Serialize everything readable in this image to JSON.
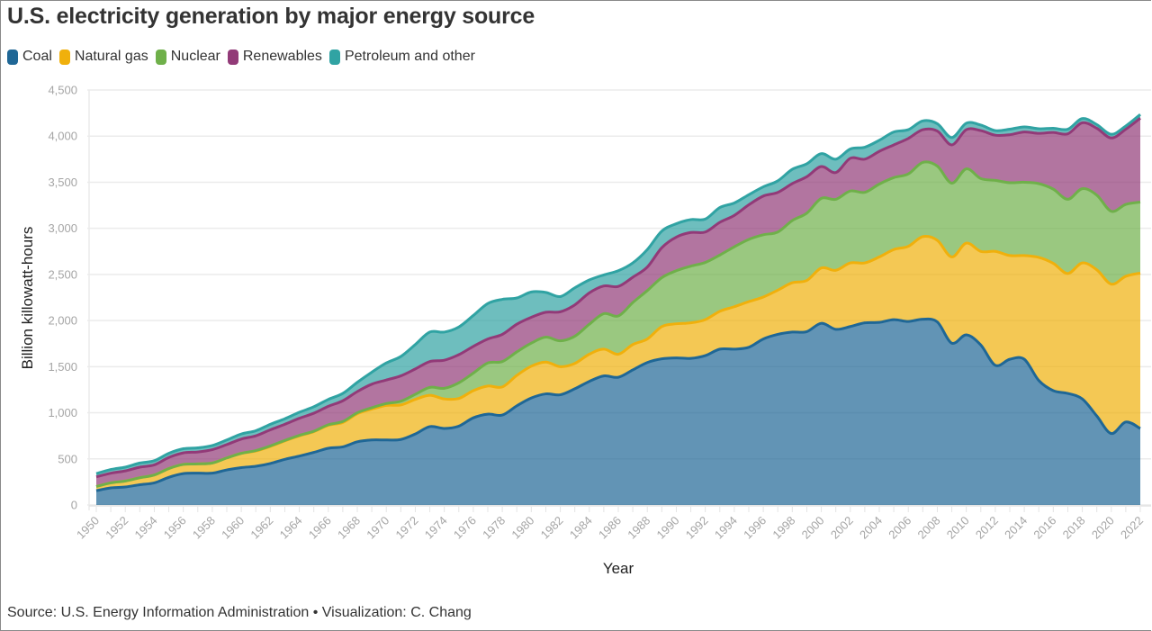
{
  "title": "U.S. electricity generation by major energy source",
  "footer": "Source: U.S. Energy Information Administration • Visualization: C. Chang",
  "legend": [
    {
      "label": "Coal",
      "color": "#1f6796"
    },
    {
      "label": "Natural gas",
      "color": "#f0b00c"
    },
    {
      "label": "Nuclear",
      "color": "#6fb04a"
    },
    {
      "label": "Renewables",
      "color": "#923a78"
    },
    {
      "label": "Petroleum and other",
      "color": "#30a3a3"
    }
  ],
  "chart_data": {
    "type": "area",
    "stacked": true,
    "title": "U.S. electricity generation by major energy source",
    "xlabel": "Year",
    "ylabel": "Billion killowatt-hours",
    "ylim": [
      0,
      4500
    ],
    "yticks": [
      0,
      500,
      1000,
      1500,
      2000,
      2500,
      3000,
      3500,
      4000,
      4500
    ],
    "ytick_labels": [
      "0",
      "500",
      "1,000",
      "1,500",
      "2,000",
      "2,500",
      "3,000",
      "3,500",
      "4,000",
      "4,500"
    ],
    "xlim": [
      1950,
      2022
    ],
    "xticks": [
      1950,
      1952,
      1954,
      1956,
      1958,
      1960,
      1962,
      1964,
      1966,
      1968,
      1970,
      1972,
      1974,
      1976,
      1978,
      1980,
      1982,
      1984,
      1986,
      1988,
      1990,
      1992,
      1994,
      1996,
      1998,
      2000,
      2002,
      2004,
      2006,
      2008,
      2010,
      2012,
      2014,
      2016,
      2018,
      2020,
      2022
    ],
    "grid": true,
    "legend_position": "top-left",
    "x": [
      1950,
      1951,
      1952,
      1953,
      1954,
      1955,
      1956,
      1957,
      1958,
      1959,
      1960,
      1961,
      1962,
      1963,
      1964,
      1965,
      1966,
      1967,
      1968,
      1969,
      1970,
      1971,
      1972,
      1973,
      1974,
      1975,
      1976,
      1977,
      1978,
      1979,
      1980,
      1981,
      1982,
      1983,
      1984,
      1985,
      1986,
      1987,
      1988,
      1989,
      1990,
      1991,
      1992,
      1993,
      1994,
      1995,
      1996,
      1997,
      1998,
      1999,
      2000,
      2001,
      2002,
      2003,
      2004,
      2005,
      2006,
      2007,
      2008,
      2009,
      2010,
      2011,
      2012,
      2013,
      2014,
      2015,
      2016,
      2017,
      2018,
      2019,
      2020,
      2021,
      2022
    ],
    "series": [
      {
        "name": "Coal",
        "color": "#1f6796",
        "values": [
          155,
          185,
          195,
          220,
          240,
          300,
          340,
          345,
          345,
          380,
          405,
          420,
          450,
          495,
          530,
          570,
          615,
          630,
          685,
          705,
          705,
          710,
          770,
          850,
          830,
          855,
          945,
          985,
          975,
          1075,
          1160,
          1205,
          1195,
          1260,
          1340,
          1400,
          1385,
          1465,
          1545,
          1585,
          1595,
          1590,
          1620,
          1690,
          1690,
          1710,
          1800,
          1850,
          1875,
          1880,
          1970,
          1905,
          1935,
          1975,
          1980,
          2010,
          1990,
          2015,
          1985,
          1755,
          1845,
          1735,
          1515,
          1580,
          1580,
          1350,
          1240,
          1210,
          1150,
          965,
          775,
          900,
          830
        ]
      },
      {
        "name": "Natural gas",
        "color": "#f0b00c",
        "values": [
          45,
          55,
          65,
          75,
          85,
          95,
          100,
          100,
          110,
          130,
          155,
          165,
          185,
          200,
          220,
          225,
          250,
          265,
          305,
          335,
          375,
          375,
          375,
          340,
          320,
          300,
          295,
          305,
          305,
          330,
          345,
          345,
          305,
          275,
          295,
          290,
          250,
          275,
          255,
          350,
          370,
          385,
          390,
          410,
          460,
          495,
          455,
          480,
          535,
          555,
          600,
          640,
          690,
          650,
          710,
          760,
          815,
          895,
          885,
          935,
          995,
          1015,
          1235,
          1125,
          1125,
          1335,
          1380,
          1300,
          1475,
          1585,
          1620,
          1580,
          1685
        ]
      },
      {
        "name": "Nuclear",
        "color": "#6fb04a",
        "values": [
          0,
          0,
          0,
          0,
          0,
          0,
          0,
          0,
          0,
          0,
          0,
          5,
          5,
          5,
          5,
          5,
          5,
          10,
          10,
          15,
          20,
          40,
          55,
          85,
          115,
          170,
          190,
          250,
          275,
          255,
          250,
          270,
          280,
          295,
          325,
          385,
          415,
          455,
          525,
          530,
          575,
          615,
          620,
          610,
          650,
          675,
          675,
          630,
          675,
          730,
          755,
          770,
          780,
          765,
          790,
          780,
          785,
          805,
          805,
          800,
          805,
          790,
          770,
          790,
          795,
          800,
          805,
          805,
          805,
          810,
          790,
          780,
          770
        ]
      },
      {
        "name": "Renewables",
        "color": "#923a78",
        "values": [
          105,
          105,
          110,
          115,
          110,
          120,
          125,
          130,
          145,
          145,
          155,
          160,
          175,
          175,
          185,
          195,
          200,
          225,
          230,
          255,
          255,
          275,
          275,
          280,
          305,
          305,
          290,
          260,
          295,
          300,
          280,
          270,
          315,
          340,
          340,
          300,
          320,
          275,
          255,
          325,
          365,
          365,
          330,
          355,
          340,
          375,
          420,
          430,
          400,
          395,
          345,
          290,
          355,
          360,
          355,
          355,
          385,
          355,
          380,
          415,
          425,
          520,
          490,
          520,
          545,
          545,
          615,
          710,
          715,
          725,
          795,
          815,
          910
        ]
      },
      {
        "name": "Petroleum and other",
        "color": "#30a3a3",
        "values": [
          35,
          40,
          40,
          45,
          45,
          45,
          45,
          45,
          45,
          50,
          55,
          55,
          60,
          60,
          65,
          70,
          75,
          80,
          100,
          130,
          185,
          210,
          265,
          320,
          305,
          300,
          335,
          385,
          380,
          285,
          275,
          215,
          165,
          185,
          140,
          120,
          170,
          155,
          190,
          180,
          145,
          140,
          140,
          160,
          135,
          110,
          100,
          125,
          155,
          140,
          140,
          145,
          100,
          130,
          120,
          140,
          95,
          95,
          80,
          80,
          70,
          60,
          50,
          60,
          55,
          50,
          45,
          50,
          45,
          40,
          40,
          35,
          40
        ]
      }
    ]
  }
}
